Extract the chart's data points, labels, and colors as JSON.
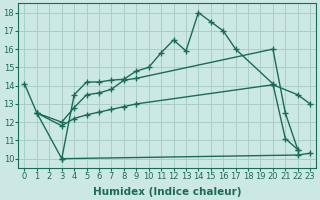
{
  "line1_x": [
    0,
    1,
    3,
    4,
    5,
    6,
    7,
    8,
    9,
    10,
    11,
    12,
    13,
    14,
    15,
    16,
    17,
    20,
    21,
    22
  ],
  "line1_y": [
    14.1,
    12.5,
    10.0,
    13.5,
    14.2,
    14.2,
    14.3,
    14.35,
    14.8,
    15.0,
    15.8,
    16.5,
    15.9,
    18.0,
    17.5,
    17.0,
    16.0,
    14.1,
    11.1,
    10.5
  ],
  "line2_x": [
    1,
    3,
    4,
    5,
    6,
    7,
    8,
    9,
    20,
    21,
    22
  ],
  "line2_y": [
    12.5,
    12.0,
    12.8,
    13.5,
    13.6,
    13.8,
    14.3,
    14.4,
    16.0,
    12.5,
    10.5
  ],
  "line3_x": [
    1,
    3,
    4,
    5,
    6,
    7,
    8,
    9,
    20,
    22,
    23
  ],
  "line3_y": [
    12.5,
    11.8,
    12.2,
    12.4,
    12.55,
    12.7,
    12.85,
    13.0,
    14.05,
    13.5,
    13.0
  ],
  "line4_x": [
    3,
    22,
    23
  ],
  "line4_y": [
    10.0,
    10.2,
    10.3
  ],
  "line_color": "#1a6b5a",
  "bg_color": "#cce8e4",
  "grid_color": "#aacfc8",
  "xlabel": "Humidex (Indice chaleur)",
  "xlim": [
    -0.5,
    23.5
  ],
  "ylim": [
    9.5,
    18.5
  ],
  "xticks": [
    0,
    1,
    2,
    3,
    4,
    5,
    6,
    7,
    8,
    9,
    10,
    11,
    12,
    13,
    14,
    15,
    16,
    17,
    18,
    19,
    20,
    21,
    22,
    23
  ],
  "yticks": [
    10,
    11,
    12,
    13,
    14,
    15,
    16,
    17,
    18
  ],
  "marker": "+",
  "markersize": 4,
  "linewidth": 1.0,
  "xlabel_fontsize": 7.5,
  "tick_fontsize": 6.0
}
